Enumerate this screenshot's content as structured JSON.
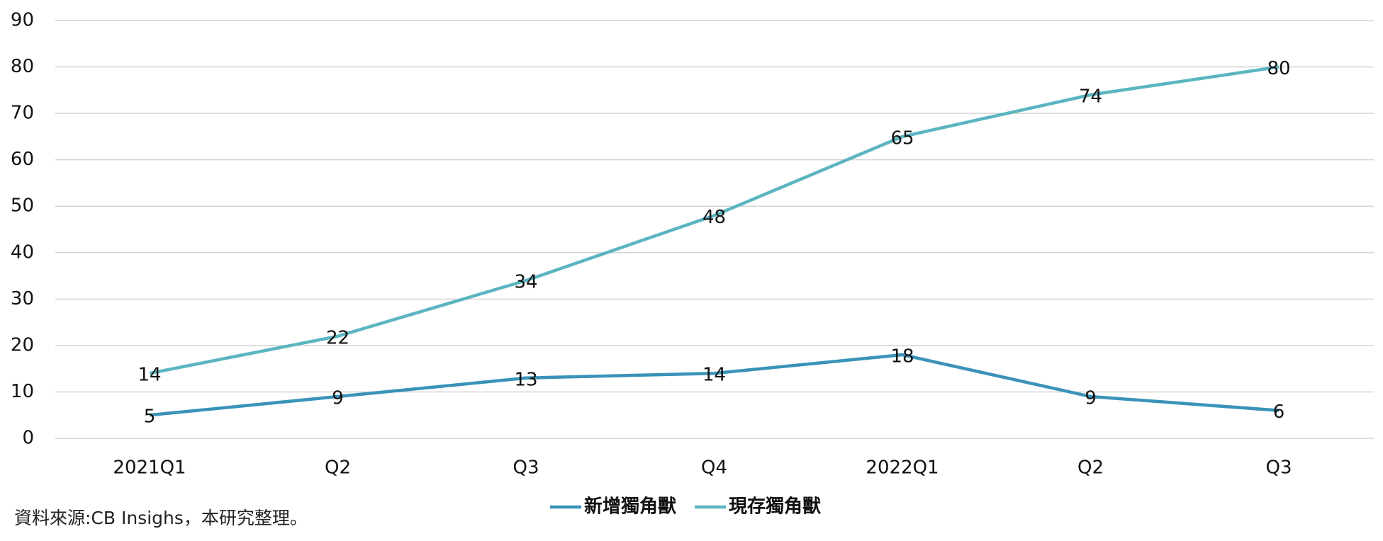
{
  "chart_data": {
    "type": "line",
    "categories": [
      "2021Q1",
      "Q2",
      "Q3",
      "Q4",
      "2022Q1",
      "Q2",
      "Q3"
    ],
    "series": [
      {
        "name": "新增獨角獸",
        "color": "#3a93b8",
        "values": [
          5,
          9,
          13,
          14,
          18,
          9,
          6
        ]
      },
      {
        "name": "現存獨角獸",
        "color": "#5bb5c0",
        "values": [
          14,
          22,
          34,
          48,
          65,
          74,
          80
        ]
      }
    ],
    "ylim": [
      0,
      90
    ],
    "yticks": [
      0,
      10,
      20,
      30,
      40,
      50,
      60,
      70,
      80,
      90
    ],
    "grid": true,
    "legend": "bottom"
  },
  "source": "資料來源:CB Insighs，本研究整理。"
}
